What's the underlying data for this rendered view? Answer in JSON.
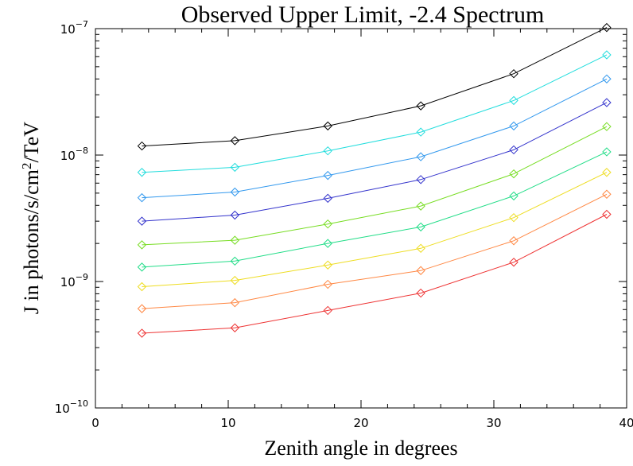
{
  "chart_data": {
    "type": "line",
    "title": "Observed Upper Limit, -2.4 Spectrum",
    "xlabel": "Zenith angle in degrees",
    "ylabel": {
      "prefix": "J in photons/s/cm",
      "sup": "2",
      "suffix": "/TeV"
    },
    "xlim": [
      0,
      40
    ],
    "ylim": [
      1e-10,
      1e-07
    ],
    "yscale": "log",
    "grid": false,
    "x_ticks": [
      "0",
      "10",
      "20",
      "30",
      "40"
    ],
    "x_tick_values": [
      0,
      10,
      20,
      30,
      40
    ],
    "y_ticks": [
      {
        "value": 1e-10,
        "base": "10",
        "exp": "−10"
      },
      {
        "value": 1e-09,
        "base": "10",
        "exp": "−9"
      },
      {
        "value": 1e-08,
        "base": "10",
        "exp": "−8"
      },
      {
        "value": 1e-07,
        "base": "10",
        "exp": "−7"
      }
    ],
    "x": [
      3.5,
      10.5,
      17.5,
      24.5,
      31.5,
      38.5
    ],
    "marker": "diamond",
    "series": [
      {
        "color": "#000000",
        "values": [
          1.18e-08,
          1.3e-08,
          1.7e-08,
          2.45e-08,
          4.4e-08,
          1.02e-07
        ]
      },
      {
        "color": "#22dddd",
        "values": [
          7.3e-09,
          8e-09,
          1.08e-08,
          1.52e-08,
          2.7e-08,
          6.2e-08
        ]
      },
      {
        "color": "#3399ee",
        "values": [
          4.6e-09,
          5.1e-09,
          6.9e-09,
          9.7e-09,
          1.7e-08,
          4e-08
        ]
      },
      {
        "color": "#3333cc",
        "values": [
          3e-09,
          3.35e-09,
          4.55e-09,
          6.4e-09,
          1.1e-08,
          2.6e-08
        ]
      },
      {
        "color": "#77dd22",
        "values": [
          1.95e-09,
          2.12e-09,
          2.85e-09,
          3.95e-09,
          7.1e-09,
          1.68e-08
        ]
      },
      {
        "color": "#22dd88",
        "values": [
          1.3e-09,
          1.45e-09,
          2e-09,
          2.7e-09,
          4.75e-09,
          1.06e-08
        ]
      },
      {
        "color": "#eedd22",
        "values": [
          9.1e-10,
          1.02e-09,
          1.35e-09,
          1.83e-09,
          3.2e-09,
          7.3e-09
        ]
      },
      {
        "color": "#ff8844",
        "values": [
          6.1e-10,
          6.8e-10,
          9.5e-10,
          1.22e-09,
          2.1e-09,
          4.9e-09
        ]
      },
      {
        "color": "#ee3333",
        "values": [
          3.9e-10,
          4.3e-10,
          5.9e-10,
          8.1e-10,
          1.42e-09,
          3.4e-09
        ]
      }
    ]
  }
}
